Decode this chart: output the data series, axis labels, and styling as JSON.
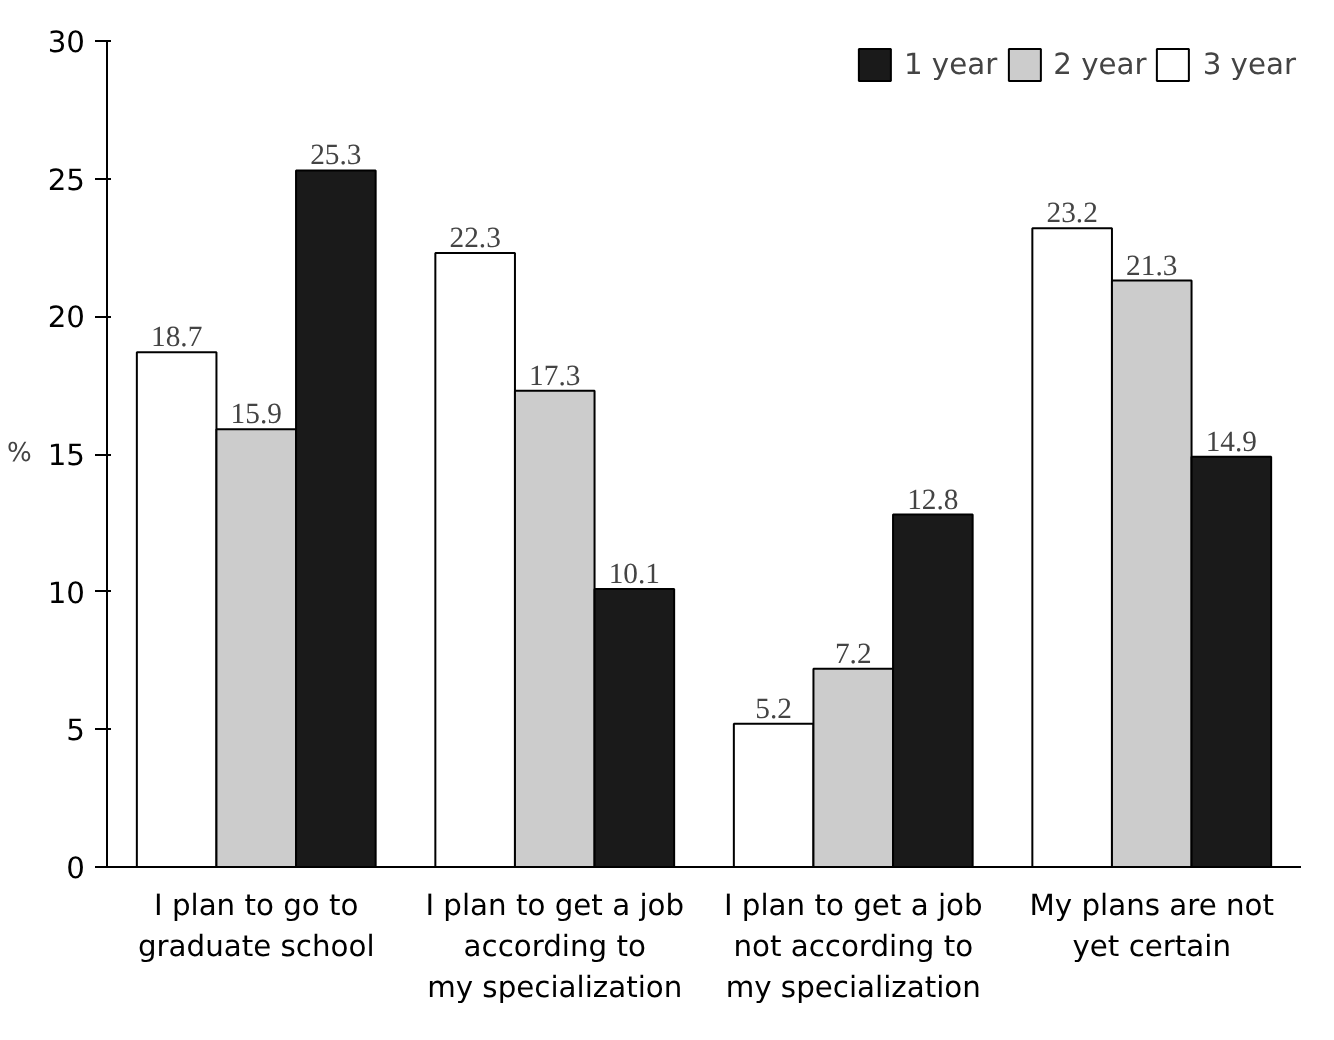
{
  "chart_data": {
    "type": "bar",
    "ylabel": "%",
    "categories": [
      "I plan to go to\ngraduate school",
      "I plan to get a job\naccording to\nmy specialization",
      "I plan to get a job\nnot according to\nmy specialization",
      "My plans are not\nyet certain"
    ],
    "series": [
      {
        "name": "3 year",
        "color": "#ffffff",
        "values": [
          18.7,
          22.3,
          5.2,
          23.2
        ]
      },
      {
        "name": "2 year",
        "color": "#cccccc",
        "values": [
          15.9,
          17.3,
          7.2,
          21.3
        ]
      },
      {
        "name": "1 year",
        "color": "#1a1a1a",
        "values": [
          25.3,
          10.1,
          12.8,
          14.9
        ]
      }
    ],
    "ylim": [
      0,
      30
    ],
    "yticks": [
      0,
      5,
      10,
      15,
      20,
      25,
      30
    ],
    "grid": false,
    "legend": "top right",
    "data_labels": true
  }
}
